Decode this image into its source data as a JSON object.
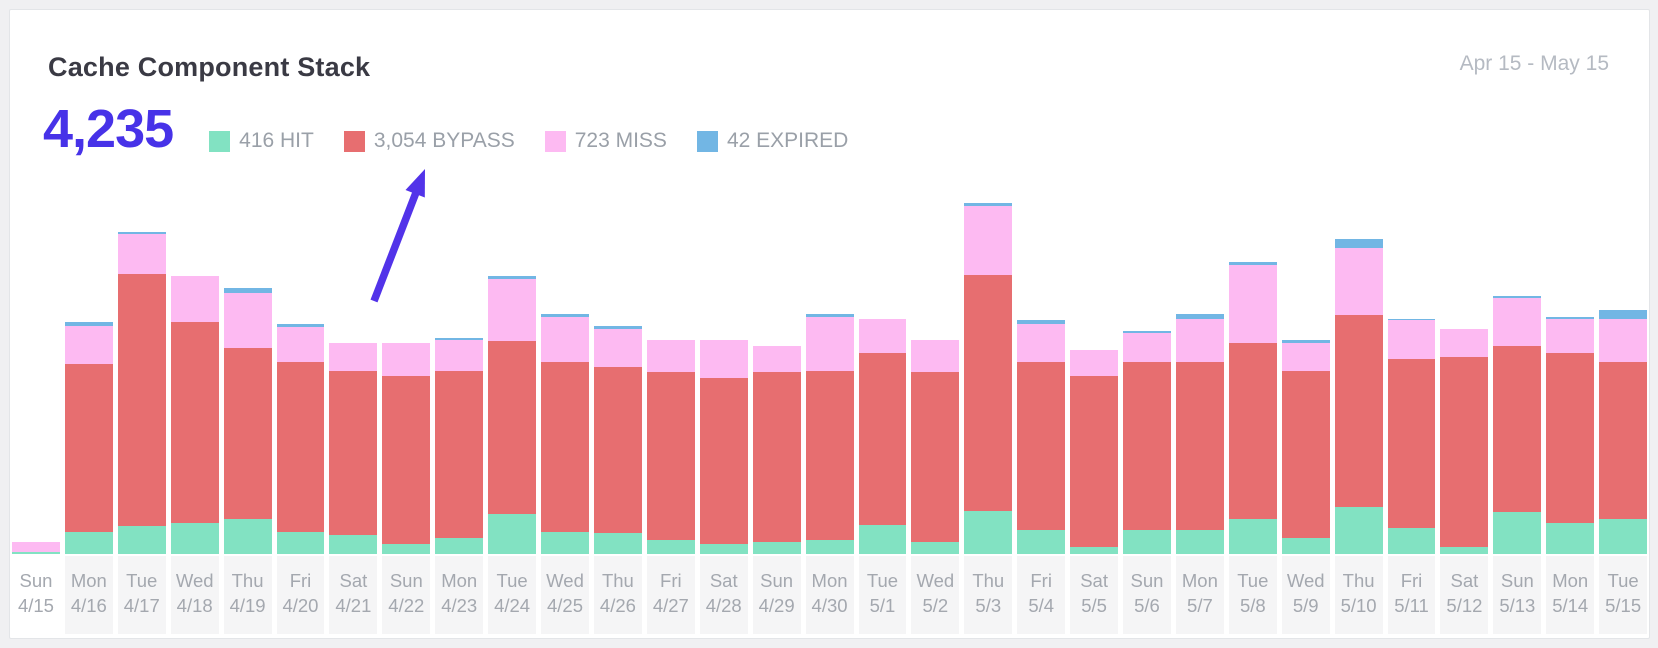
{
  "header": {
    "title": "Cache Component Stack",
    "date_range": "Apr 15 - May 15",
    "total": "4,235",
    "total_color": "#4732e8"
  },
  "legend": {
    "items": [
      {
        "key": "hit",
        "label": "416 HIT",
        "color": "#82e2c2"
      },
      {
        "key": "bypass",
        "label": "3,054 BYPASS",
        "color": "#e76e70"
      },
      {
        "key": "miss",
        "label": "723 MISS",
        "color": "#fdbaf2"
      },
      {
        "key": "expired",
        "label": "42 EXPIRED",
        "color": "#72b6e4"
      }
    ]
  },
  "annotation": {
    "description": "arrow pointing to BYPASS legend item",
    "color": "#5233e9"
  },
  "chart_data": {
    "type": "bar",
    "stacked": true,
    "title": "Cache Component Stack",
    "xlabel": "",
    "ylabel": "",
    "y_axis_visible": false,
    "grid": false,
    "legend_position": "top",
    "date_range": "Apr 15 - May 15",
    "total_requests": 4235,
    "series": [
      {
        "key": "hit",
        "name": "HIT",
        "total": 416,
        "color": "#82e2c2"
      },
      {
        "key": "bypass",
        "name": "BYPASS",
        "total": 3054,
        "color": "#e76e70"
      },
      {
        "key": "miss",
        "name": "MISS",
        "total": 723,
        "color": "#fdbaf2"
      },
      {
        "key": "expired",
        "name": "EXPIRED",
        "total": 42,
        "color": "#72b6e4"
      }
    ],
    "days": [
      {
        "day": "Sun",
        "date": "4/15",
        "hit": 1,
        "bypass": 0,
        "miss": 6,
        "expired": 0
      },
      {
        "day": "Mon",
        "date": "4/16",
        "hit": 13,
        "bypass": 97,
        "miss": 22,
        "expired": 2
      },
      {
        "day": "Tue",
        "date": "4/17",
        "hit": 16,
        "bypass": 146,
        "miss": 23,
        "expired": 1
      },
      {
        "day": "Wed",
        "date": "4/18",
        "hit": 18,
        "bypass": 116,
        "miss": 27,
        "expired": 0
      },
      {
        "day": "Thu",
        "date": "4/19",
        "hit": 20,
        "bypass": 99,
        "miss": 32,
        "expired": 3
      },
      {
        "day": "Fri",
        "date": "4/20",
        "hit": 13,
        "bypass": 98,
        "miss": 20,
        "expired": 2
      },
      {
        "day": "Sat",
        "date": "4/21",
        "hit": 11,
        "bypass": 95,
        "miss": 16,
        "expired": 0
      },
      {
        "day": "Sun",
        "date": "4/22",
        "hit": 6,
        "bypass": 97,
        "miss": 19,
        "expired": 0
      },
      {
        "day": "Mon",
        "date": "4/23",
        "hit": 9,
        "bypass": 97,
        "miss": 18,
        "expired": 1
      },
      {
        "day": "Tue",
        "date": "4/24",
        "hit": 23,
        "bypass": 100,
        "miss": 36,
        "expired": 2
      },
      {
        "day": "Wed",
        "date": "4/25",
        "hit": 13,
        "bypass": 98,
        "miss": 26,
        "expired": 2
      },
      {
        "day": "Thu",
        "date": "4/26",
        "hit": 12,
        "bypass": 96,
        "miss": 22,
        "expired": 2
      },
      {
        "day": "Fri",
        "date": "4/27",
        "hit": 8,
        "bypass": 97,
        "miss": 19,
        "expired": 0
      },
      {
        "day": "Sat",
        "date": "4/28",
        "hit": 6,
        "bypass": 96,
        "miss": 22,
        "expired": 0
      },
      {
        "day": "Sun",
        "date": "4/29",
        "hit": 7,
        "bypass": 98,
        "miss": 15,
        "expired": 0
      },
      {
        "day": "Mon",
        "date": "4/30",
        "hit": 8,
        "bypass": 98,
        "miss": 31,
        "expired": 2
      },
      {
        "day": "Tue",
        "date": "5/1",
        "hit": 17,
        "bypass": 99,
        "miss": 20,
        "expired": 0
      },
      {
        "day": "Wed",
        "date": "5/2",
        "hit": 7,
        "bypass": 98,
        "miss": 19,
        "expired": 0
      },
      {
        "day": "Thu",
        "date": "5/3",
        "hit": 25,
        "bypass": 136,
        "miss": 40,
        "expired": 2
      },
      {
        "day": "Fri",
        "date": "5/4",
        "hit": 14,
        "bypass": 97,
        "miss": 22,
        "expired": 2
      },
      {
        "day": "Sat",
        "date": "5/5",
        "hit": 4,
        "bypass": 99,
        "miss": 15,
        "expired": 0
      },
      {
        "day": "Sun",
        "date": "5/6",
        "hit": 14,
        "bypass": 97,
        "miss": 17,
        "expired": 1
      },
      {
        "day": "Mon",
        "date": "5/7",
        "hit": 14,
        "bypass": 97,
        "miss": 25,
        "expired": 3
      },
      {
        "day": "Tue",
        "date": "5/8",
        "hit": 20,
        "bypass": 102,
        "miss": 45,
        "expired": 2
      },
      {
        "day": "Wed",
        "date": "5/9",
        "hit": 9,
        "bypass": 97,
        "miss": 16,
        "expired": 2
      },
      {
        "day": "Thu",
        "date": "5/10",
        "hit": 27,
        "bypass": 111,
        "miss": 39,
        "expired": 5
      },
      {
        "day": "Fri",
        "date": "5/11",
        "hit": 15,
        "bypass": 98,
        "miss": 22,
        "expired": 1
      },
      {
        "day": "Sat",
        "date": "5/12",
        "hit": 4,
        "bypass": 110,
        "miss": 16,
        "expired": 0
      },
      {
        "day": "Sun",
        "date": "5/13",
        "hit": 24,
        "bypass": 96,
        "miss": 28,
        "expired": 1
      },
      {
        "day": "Mon",
        "date": "5/14",
        "hit": 18,
        "bypass": 98,
        "miss": 20,
        "expired": 1
      },
      {
        "day": "Tue",
        "date": "5/15",
        "hit": 20,
        "bypass": 91,
        "miss": 25,
        "expired": 5
      }
    ]
  }
}
